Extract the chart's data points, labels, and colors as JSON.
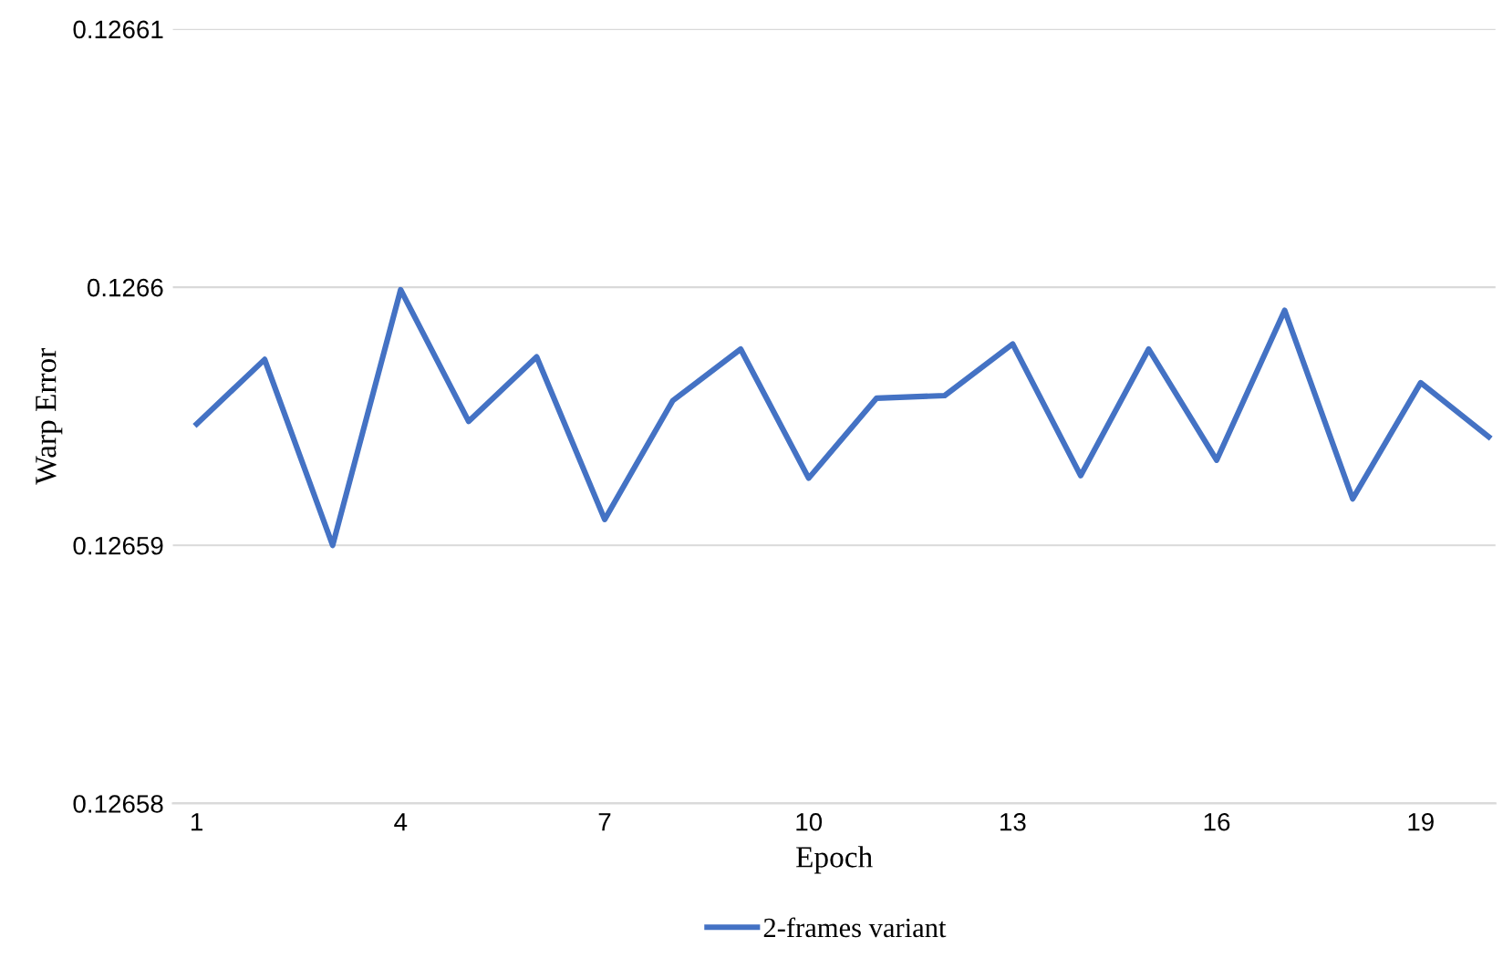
{
  "chart_data": {
    "type": "line",
    "xlabel": "Epoch",
    "ylabel": "Warp Error",
    "categories": [
      "1",
      null,
      null,
      "4",
      null,
      null,
      "7",
      null,
      null,
      "10",
      null,
      null,
      "13",
      null,
      null,
      "16",
      null,
      null,
      "19",
      null
    ],
    "series": [
      {
        "name": "2-frames variant",
        "color": "#4472c4",
        "values": [
          0.1265947,
          0.1265972,
          0.12659,
          0.1265999,
          0.1265948,
          0.1265973,
          0.126591,
          0.1265956,
          0.1265976,
          0.1265926,
          0.1265957,
          0.1265958,
          0.1265978,
          0.1265927,
          0.1265976,
          0.1265933,
          0.1265991,
          0.1265918,
          0.1265963,
          0.1265942
        ]
      }
    ],
    "ylim": [
      0.12658,
      0.12661
    ],
    "yticks": [
      0.12658,
      0.12659,
      0.1266,
      0.12661
    ],
    "grid": "y",
    "legend": "bottom",
    "marker": "none",
    "line_style": "solid"
  }
}
